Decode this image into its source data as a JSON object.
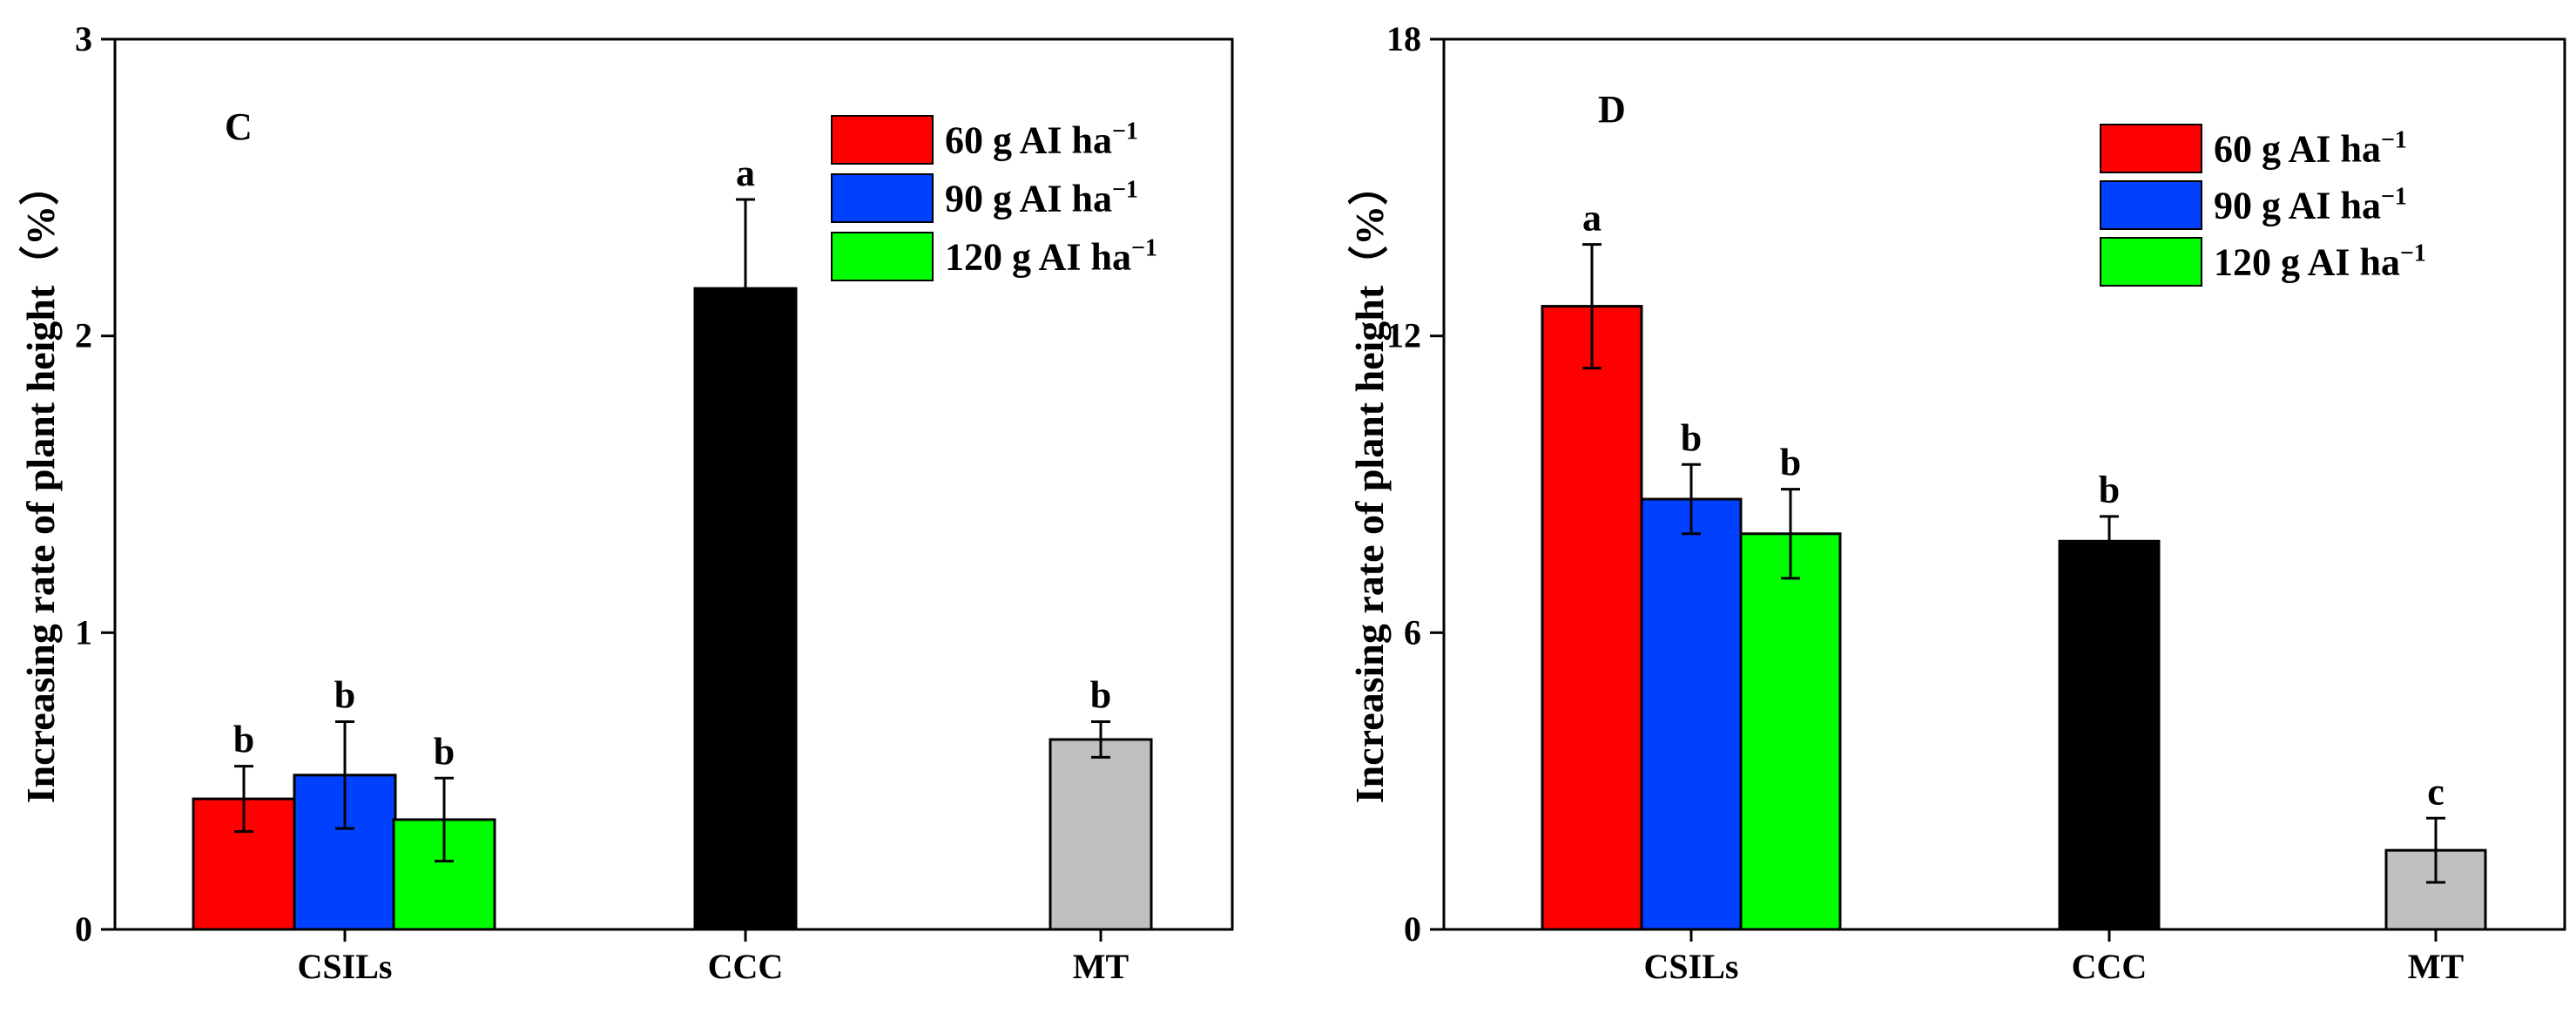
{
  "chart_data": [
    {
      "type": "bar",
      "panel": "C",
      "ylabel": "Increasing rate of plant height（%）",
      "ylim": [
        0,
        3
      ],
      "yticks": [
        "0",
        "1",
        "2",
        "3"
      ],
      "categories": [
        "CSILs",
        "CCC",
        "MT"
      ],
      "legend": {
        "placement": "top-right",
        "entries": [
          {
            "label": "60 g AI ha",
            "sup": "−1",
            "color": "#ff0000"
          },
          {
            "label": "90 g AI ha",
            "sup": "−1",
            "color": "#0040ff"
          },
          {
            "label": "120 g AI ha",
            "sup": "−1",
            "color": "#00ff00"
          }
        ]
      },
      "bars": [
        {
          "category": "CSILs",
          "series": "60 g AI ha-1",
          "value": 0.44,
          "error": 0.11,
          "letter": "b",
          "color": "#ff0000"
        },
        {
          "category": "CSILs",
          "series": "90 g AI ha-1",
          "value": 0.52,
          "error": 0.18,
          "letter": "b",
          "color": "#0040ff"
        },
        {
          "category": "CSILs",
          "series": "120 g AI ha-1",
          "value": 0.37,
          "error": 0.14,
          "letter": "b",
          "color": "#00ff00"
        },
        {
          "category": "CCC",
          "series": "CCC",
          "value": 2.16,
          "error": 0.3,
          "letter": "a",
          "color": "#000000"
        },
        {
          "category": "MT",
          "series": "MT",
          "value": 0.64,
          "error": 0.06,
          "letter": "b",
          "color": "#c0c0c0"
        }
      ]
    },
    {
      "type": "bar",
      "panel": "D",
      "ylabel": "Increasing rate of plant height（%）",
      "ylim": [
        0,
        18
      ],
      "yticks": [
        "0",
        "6",
        "12",
        "18"
      ],
      "categories": [
        "CSILs",
        "CCC",
        "MT"
      ],
      "legend": {
        "placement": "top-right",
        "entries": [
          {
            "label": "60 g AI ha",
            "sup": "−1",
            "color": "#ff0000"
          },
          {
            "label": "90 g AI ha",
            "sup": "−1",
            "color": "#0040ff"
          },
          {
            "label": "120 g AI ha",
            "sup": "−1",
            "color": "#00ff00"
          }
        ]
      },
      "bars": [
        {
          "category": "CSILs",
          "series": "60 g AI ha-1",
          "value": 12.6,
          "error": 1.25,
          "letter": "a",
          "color": "#ff0000"
        },
        {
          "category": "CSILs",
          "series": "90 g AI ha-1",
          "value": 8.7,
          "error": 0.7,
          "letter": "b",
          "color": "#0040ff"
        },
        {
          "category": "CSILs",
          "series": "120 g AI ha-1",
          "value": 8.0,
          "error": 0.9,
          "letter": "b",
          "color": "#00ff00"
        },
        {
          "category": "CCC",
          "series": "CCC",
          "value": 7.85,
          "error": 0.5,
          "letter": "b",
          "color": "#000000"
        },
        {
          "category": "MT",
          "series": "MT",
          "value": 1.6,
          "error": 0.65,
          "letter": "c",
          "color": "#c0c0c0"
        }
      ]
    }
  ]
}
